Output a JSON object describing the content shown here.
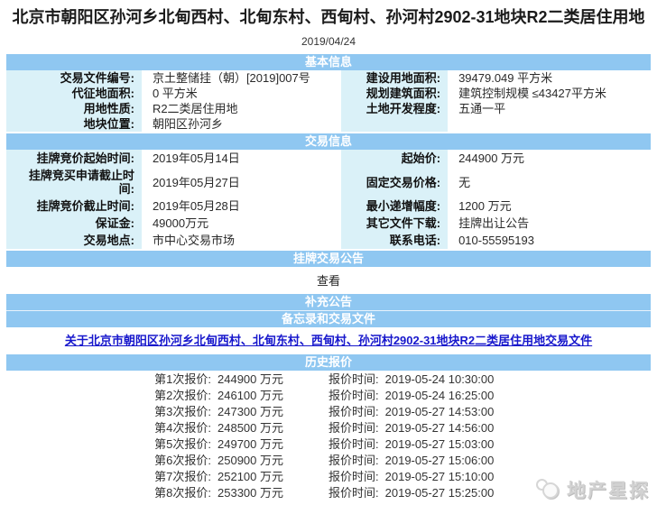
{
  "page": {
    "title": "北京市朝阳区孙河乡北甸西村、北甸东村、西甸村、孙河村2902-31地块R2二类居住用地",
    "date": "2019/04/24"
  },
  "colors": {
    "section_header_bg": "#8fc7f1",
    "label_cell_bg": "#daf1f8",
    "link_blue": "#1717cc",
    "watermark_gray": "#d2d2d2"
  },
  "sections": {
    "basic": {
      "header": "基本信息",
      "rows": [
        [
          "交易文件编号:",
          "京土整储挂（朝）[2019]007号",
          "建设用地面积:",
          "39479.049 平方米"
        ],
        [
          "代征地面积:",
          "0 平方米",
          "规划建筑面积:",
          "建筑控制规模 ≤43427平方米"
        ],
        [
          "用地性质:",
          "R2二类居住用地",
          "土地开发程度:",
          "五通一平"
        ],
        [
          "地块位置:",
          "朝阳区孙河乡",
          "",
          ""
        ]
      ]
    },
    "trade": {
      "header": "交易信息",
      "rows": [
        [
          "挂牌竞价起始时间:",
          "2019年05月14日",
          "起始价:",
          "244900 万元"
        ],
        [
          "挂牌竞买申请截止时间:",
          "2019年05月27日",
          "固定交易价格:",
          "无"
        ],
        [
          "挂牌竞价截止时间:",
          "2019年05月28日",
          "最小递增幅度:",
          "1200 万元"
        ],
        [
          "保证金:",
          "49000万元",
          "其它文件下载:",
          "挂牌出让公告"
        ],
        [
          "交易地点:",
          "市中心交易市场",
          "联系电话:",
          "010-55595193"
        ]
      ]
    },
    "listing": {
      "header": "挂牌交易公告",
      "view_link": "查看"
    },
    "supplement": {
      "header": "补充公告"
    },
    "memo": {
      "header": "备忘录和交易文件",
      "doc_link": "关于北京市朝阳区孙河乡北甸西村、北甸东村、西甸村、孙河村2902-31地块R2二类居住用地交易文件"
    },
    "history": {
      "header": "历史报价",
      "rows": [
        [
          "第1次报价:",
          "244900 万元",
          "报价时间:",
          "2019-05-24 10:30:00"
        ],
        [
          "第2次报价:",
          "246100 万元",
          "报价时间:",
          "2019-05-24 16:25:00"
        ],
        [
          "第3次报价:",
          "247300 万元",
          "报价时间:",
          "2019-05-27 14:53:00"
        ],
        [
          "第4次报价:",
          "248500 万元",
          "报价时间:",
          "2019-05-27 14:56:00"
        ],
        [
          "第5次报价:",
          "249700 万元",
          "报价时间:",
          "2019-05-27 15:03:00"
        ],
        [
          "第6次报价:",
          "250900 万元",
          "报价时间:",
          "2019-05-27 15:06:00"
        ],
        [
          "第7次报价:",
          "252100 万元",
          "报价时间:",
          "2019-05-27 15:10:00"
        ],
        [
          "第8次报价:",
          "253300 万元",
          "报价时间:",
          "2019-05-27 15:25:00"
        ]
      ]
    }
  },
  "watermark": {
    "text": "地产星探"
  }
}
